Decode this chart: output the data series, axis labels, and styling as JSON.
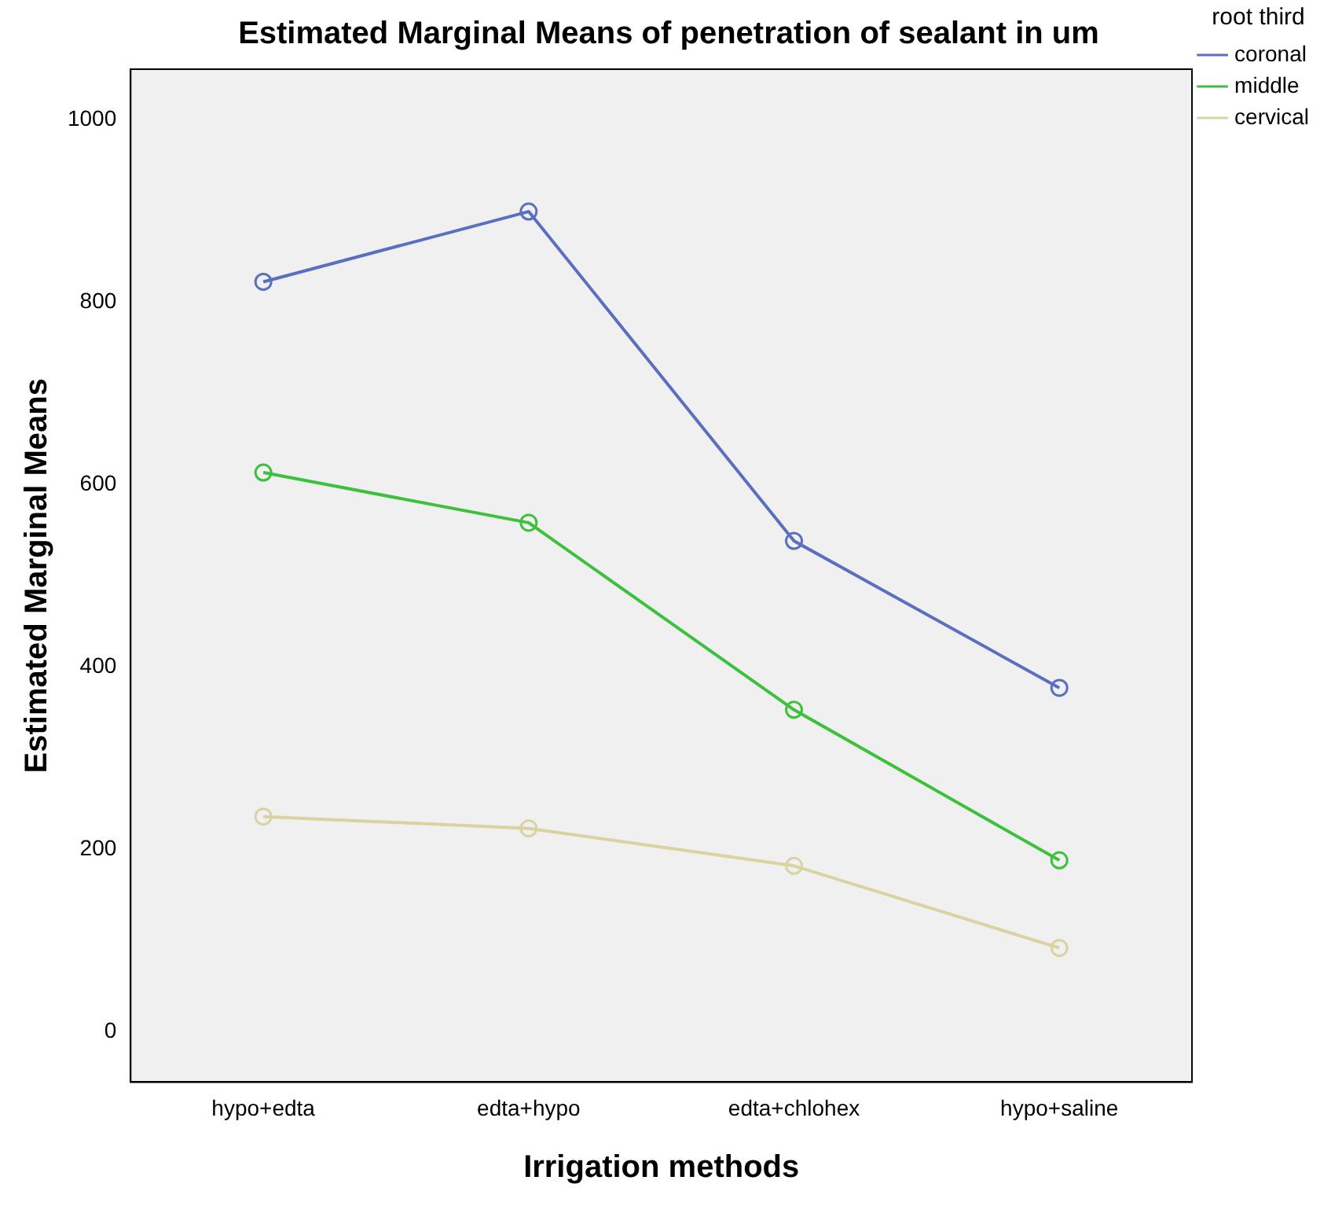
{
  "chart_data": {
    "type": "line",
    "title": "Estimated Marginal Means of penetration of sealant in um",
    "xlabel": "Irrigation methods",
    "ylabel": "Estimated Marginal Means",
    "legend_title": "root third",
    "categories": [
      "hypo+edta",
      "edta+hypo",
      "edta+chlohex",
      "hypo+saline"
    ],
    "series": [
      {
        "name": "coronal",
        "color": "#5b6fc0",
        "values": [
          822,
          899,
          538,
          377
        ]
      },
      {
        "name": "middle",
        "color": "#3dc13d",
        "values": [
          613,
          558,
          353,
          188
        ]
      },
      {
        "name": "cervical",
        "color": "#d8d3a0",
        "values": [
          236,
          223,
          182,
          92
        ]
      }
    ],
    "ylim": [
      -55,
      1055
    ],
    "yticks": [
      0,
      200,
      400,
      600,
      800,
      1000
    ],
    "grid": false,
    "legend": "right",
    "marker": "circle"
  }
}
